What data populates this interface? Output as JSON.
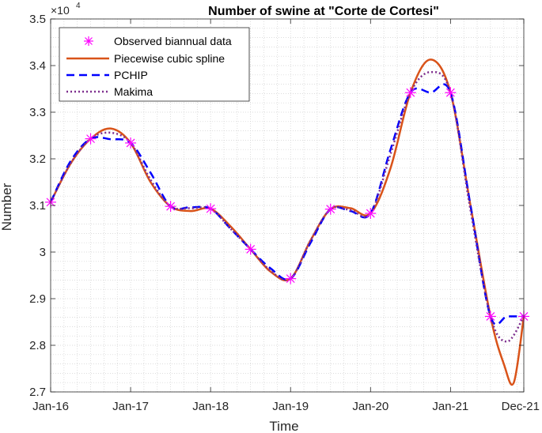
{
  "chart_data": {
    "type": "line",
    "title": "Number of swine at \"Corte de Cortesi\"",
    "xlabel": "Time",
    "ylabel": "Number",
    "y_multiplier": {
      "base": "×10",
      "exponent": "4"
    },
    "x_ticks": [
      "Jan-16",
      "Jan-17",
      "Jan-18",
      "Jan-19",
      "Jan-20",
      "Jan-21",
      "Dec-21"
    ],
    "x_tick_positions": [
      0,
      12,
      24,
      36,
      48,
      60,
      71
    ],
    "xlim": [
      0,
      71
    ],
    "y_ticks": [
      "2.7",
      "2.8",
      "2.9",
      "3",
      "3.1",
      "3.2",
      "3.3",
      "3.4",
      "3.5"
    ],
    "ylim": [
      2.7,
      3.5
    ],
    "grid": "minor-dotted",
    "legend_position": "top-left",
    "observed_x": [
      0,
      6,
      12,
      18,
      24,
      30,
      36,
      42,
      48,
      54,
      60,
      66,
      71
    ],
    "observed_y": [
      3.107,
      3.243,
      3.234,
      3.098,
      3.093,
      3.006,
      2.943,
      3.092,
      3.083,
      3.342,
      3.342,
      2.862,
      2.862
    ],
    "series": [
      {
        "name": "Observed biannual data",
        "kind": "markers",
        "color": "#ff00ff"
      },
      {
        "name": "Piecewise cubic spline",
        "kind": "solid",
        "color": "#d95319",
        "points": [
          [
            0,
            3.107
          ],
          [
            3,
            3.19
          ],
          [
            6,
            3.243
          ],
          [
            9,
            3.265
          ],
          [
            12,
            3.234
          ],
          [
            15,
            3.15
          ],
          [
            18,
            3.098
          ],
          [
            21,
            3.088
          ],
          [
            24,
            3.093
          ],
          [
            27,
            3.055
          ],
          [
            30,
            3.006
          ],
          [
            33,
            2.958
          ],
          [
            36,
            2.943
          ],
          [
            39,
            3.025
          ],
          [
            42,
            3.092
          ],
          [
            45,
            3.094
          ],
          [
            48,
            3.083
          ],
          [
            51,
            3.18
          ],
          [
            54,
            3.342
          ],
          [
            57,
            3.413
          ],
          [
            60,
            3.342
          ],
          [
            63,
            3.1
          ],
          [
            66,
            2.862
          ],
          [
            68,
            2.76
          ],
          [
            69.5,
            2.72
          ],
          [
            71,
            2.862
          ]
        ]
      },
      {
        "name": "PCHIP",
        "kind": "dashed",
        "color": "#0000ff",
        "points": [
          [
            0,
            3.107
          ],
          [
            3,
            3.195
          ],
          [
            6,
            3.243
          ],
          [
            9,
            3.242
          ],
          [
            12,
            3.234
          ],
          [
            15,
            3.17
          ],
          [
            18,
            3.098
          ],
          [
            21,
            3.096
          ],
          [
            24,
            3.093
          ],
          [
            27,
            3.05
          ],
          [
            30,
            3.006
          ],
          [
            33,
            2.965
          ],
          [
            36,
            2.943
          ],
          [
            39,
            3.02
          ],
          [
            42,
            3.092
          ],
          [
            45,
            3.088
          ],
          [
            48,
            3.083
          ],
          [
            51,
            3.22
          ],
          [
            54,
            3.342
          ],
          [
            57,
            3.342
          ],
          [
            60,
            3.342
          ],
          [
            63,
            3.1
          ],
          [
            66,
            2.862
          ],
          [
            68.5,
            2.862
          ],
          [
            71,
            2.862
          ]
        ]
      },
      {
        "name": "Makima",
        "kind": "dotted",
        "color": "#7e2f8e",
        "points": [
          [
            0,
            3.107
          ],
          [
            3,
            3.19
          ],
          [
            6,
            3.243
          ],
          [
            9,
            3.256
          ],
          [
            12,
            3.234
          ],
          [
            15,
            3.155
          ],
          [
            18,
            3.098
          ],
          [
            21,
            3.094
          ],
          [
            24,
            3.093
          ],
          [
            27,
            3.05
          ],
          [
            30,
            3.006
          ],
          [
            33,
            2.96
          ],
          [
            36,
            2.943
          ],
          [
            39,
            3.025
          ],
          [
            42,
            3.092
          ],
          [
            45,
            3.09
          ],
          [
            48,
            3.083
          ],
          [
            51,
            3.21
          ],
          [
            54,
            3.342
          ],
          [
            57,
            3.386
          ],
          [
            60,
            3.342
          ],
          [
            63,
            3.09
          ],
          [
            66,
            2.862
          ],
          [
            68.5,
            2.808
          ],
          [
            71,
            2.862
          ]
        ]
      }
    ]
  }
}
